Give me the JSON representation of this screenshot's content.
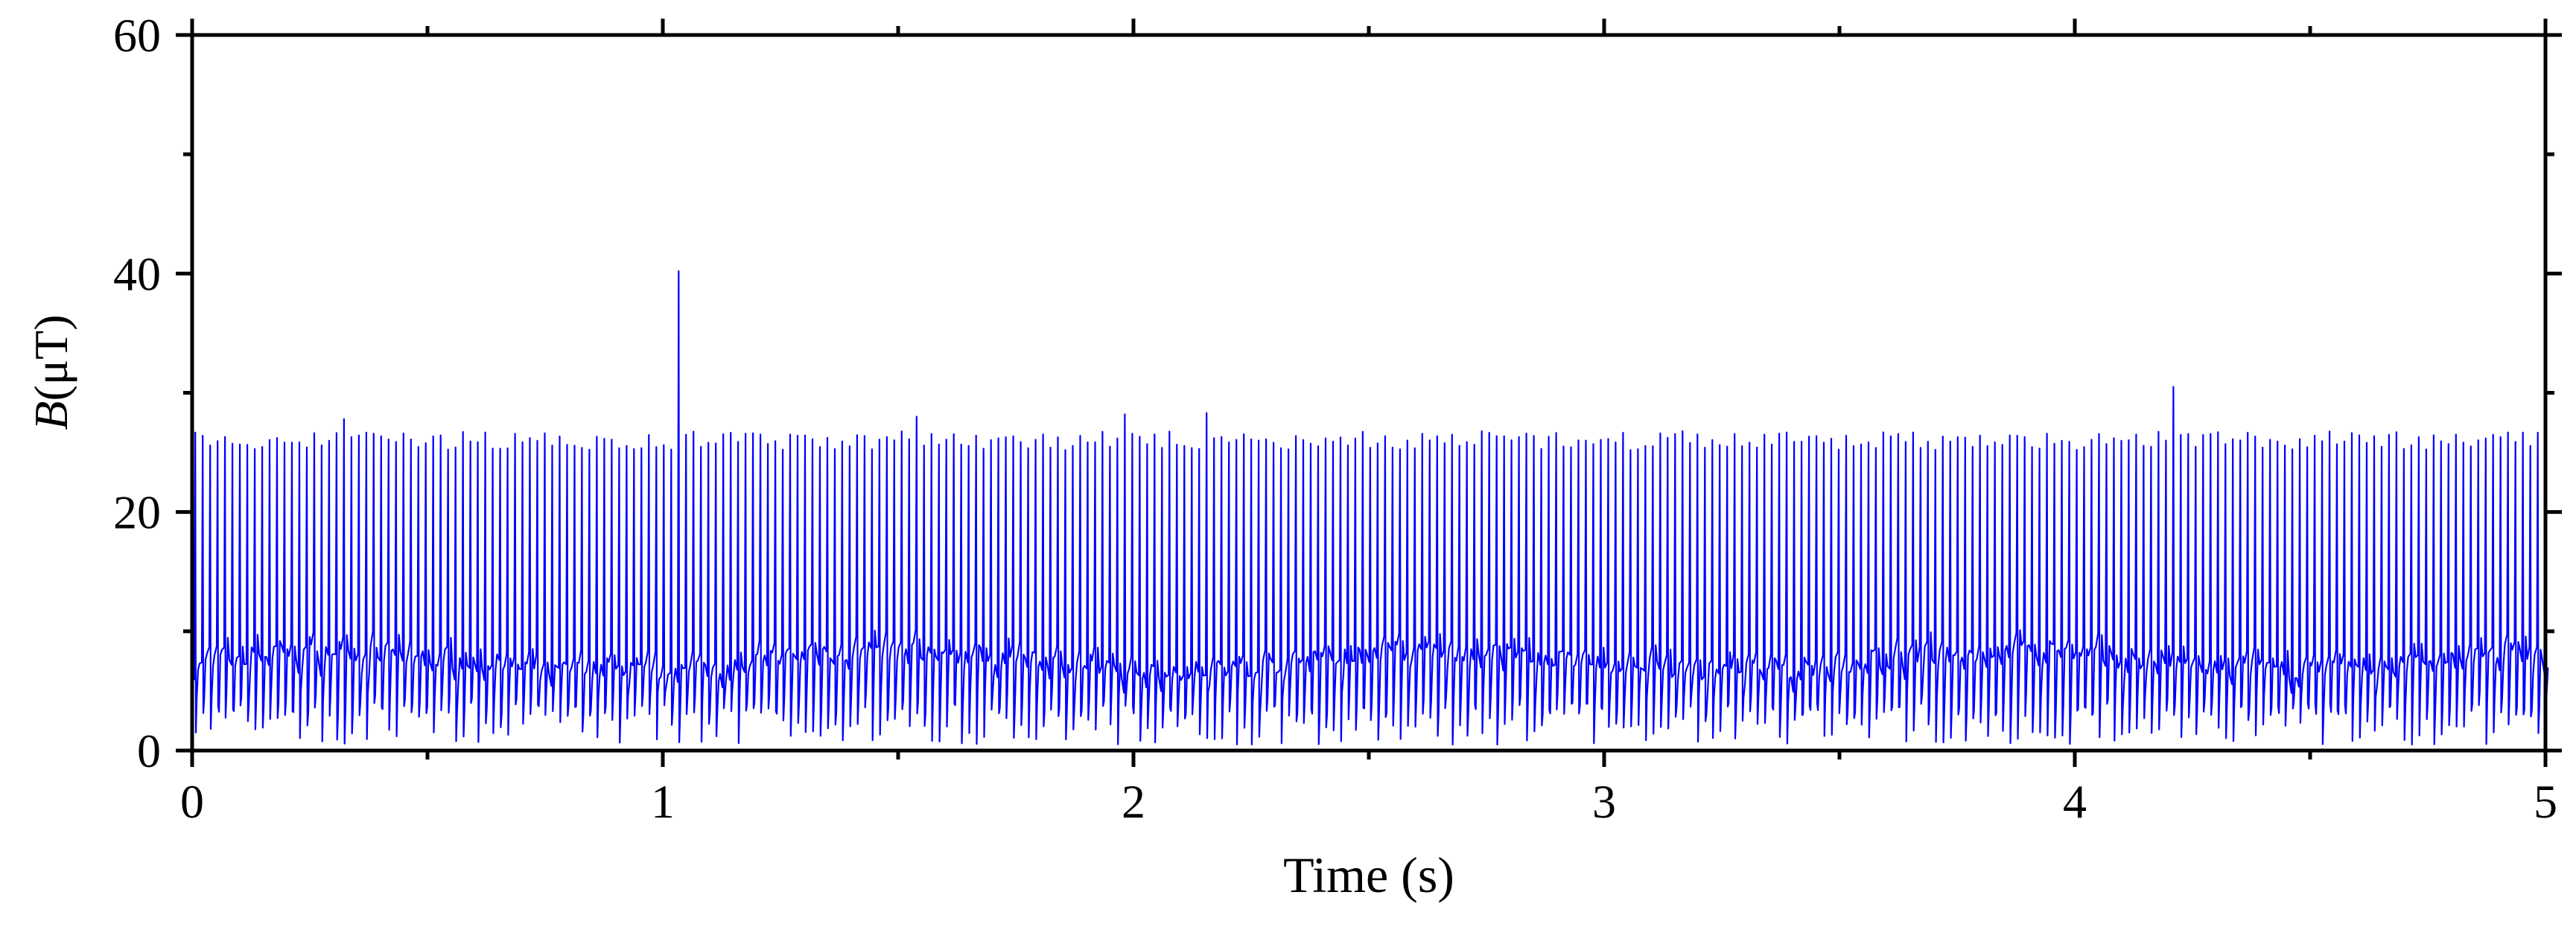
{
  "chart_data": {
    "type": "line",
    "title": "",
    "xlabel": "Time (s)",
    "ylabel_italic": "B",
    "ylabel_unit": "(μT)",
    "xlim": [
      0,
      5
    ],
    "ylim": [
      0,
      60
    ],
    "x_ticks": [
      {
        "value": 0,
        "label": "0"
      },
      {
        "value": 1,
        "label": "1"
      },
      {
        "value": 2,
        "label": "2"
      },
      {
        "value": 3,
        "label": "3"
      },
      {
        "value": 4,
        "label": "4"
      },
      {
        "value": 5,
        "label": "5"
      }
    ],
    "y_ticks": [
      {
        "value": 0,
        "label": "0"
      },
      {
        "value": 20,
        "label": "20"
      },
      {
        "value": 40,
        "label": "40"
      },
      {
        "value": 60,
        "label": "60"
      }
    ],
    "x_minor_step": 0.5,
    "y_minor_step": 10,
    "grid": false,
    "legend": "none",
    "series": [
      {
        "color": "#0000ff",
        "baseline": 7.5,
        "baseline_min": 3,
        "baseline_max": 10,
        "pulse_period_s": 0.0158,
        "pulse_peak_typical": 26,
        "pulse_trough_typical": 0.5,
        "notable_peaks": [
          {
            "x": 0.31,
            "y": 27.8
          },
          {
            "x": 1.02,
            "y": 40.2
          },
          {
            "x": 1.54,
            "y": 28.0
          },
          {
            "x": 1.97,
            "y": 28.2
          },
          {
            "x": 2.15,
            "y": 28.3
          },
          {
            "x": 4.21,
            "y": 30.5
          }
        ]
      }
    ]
  }
}
